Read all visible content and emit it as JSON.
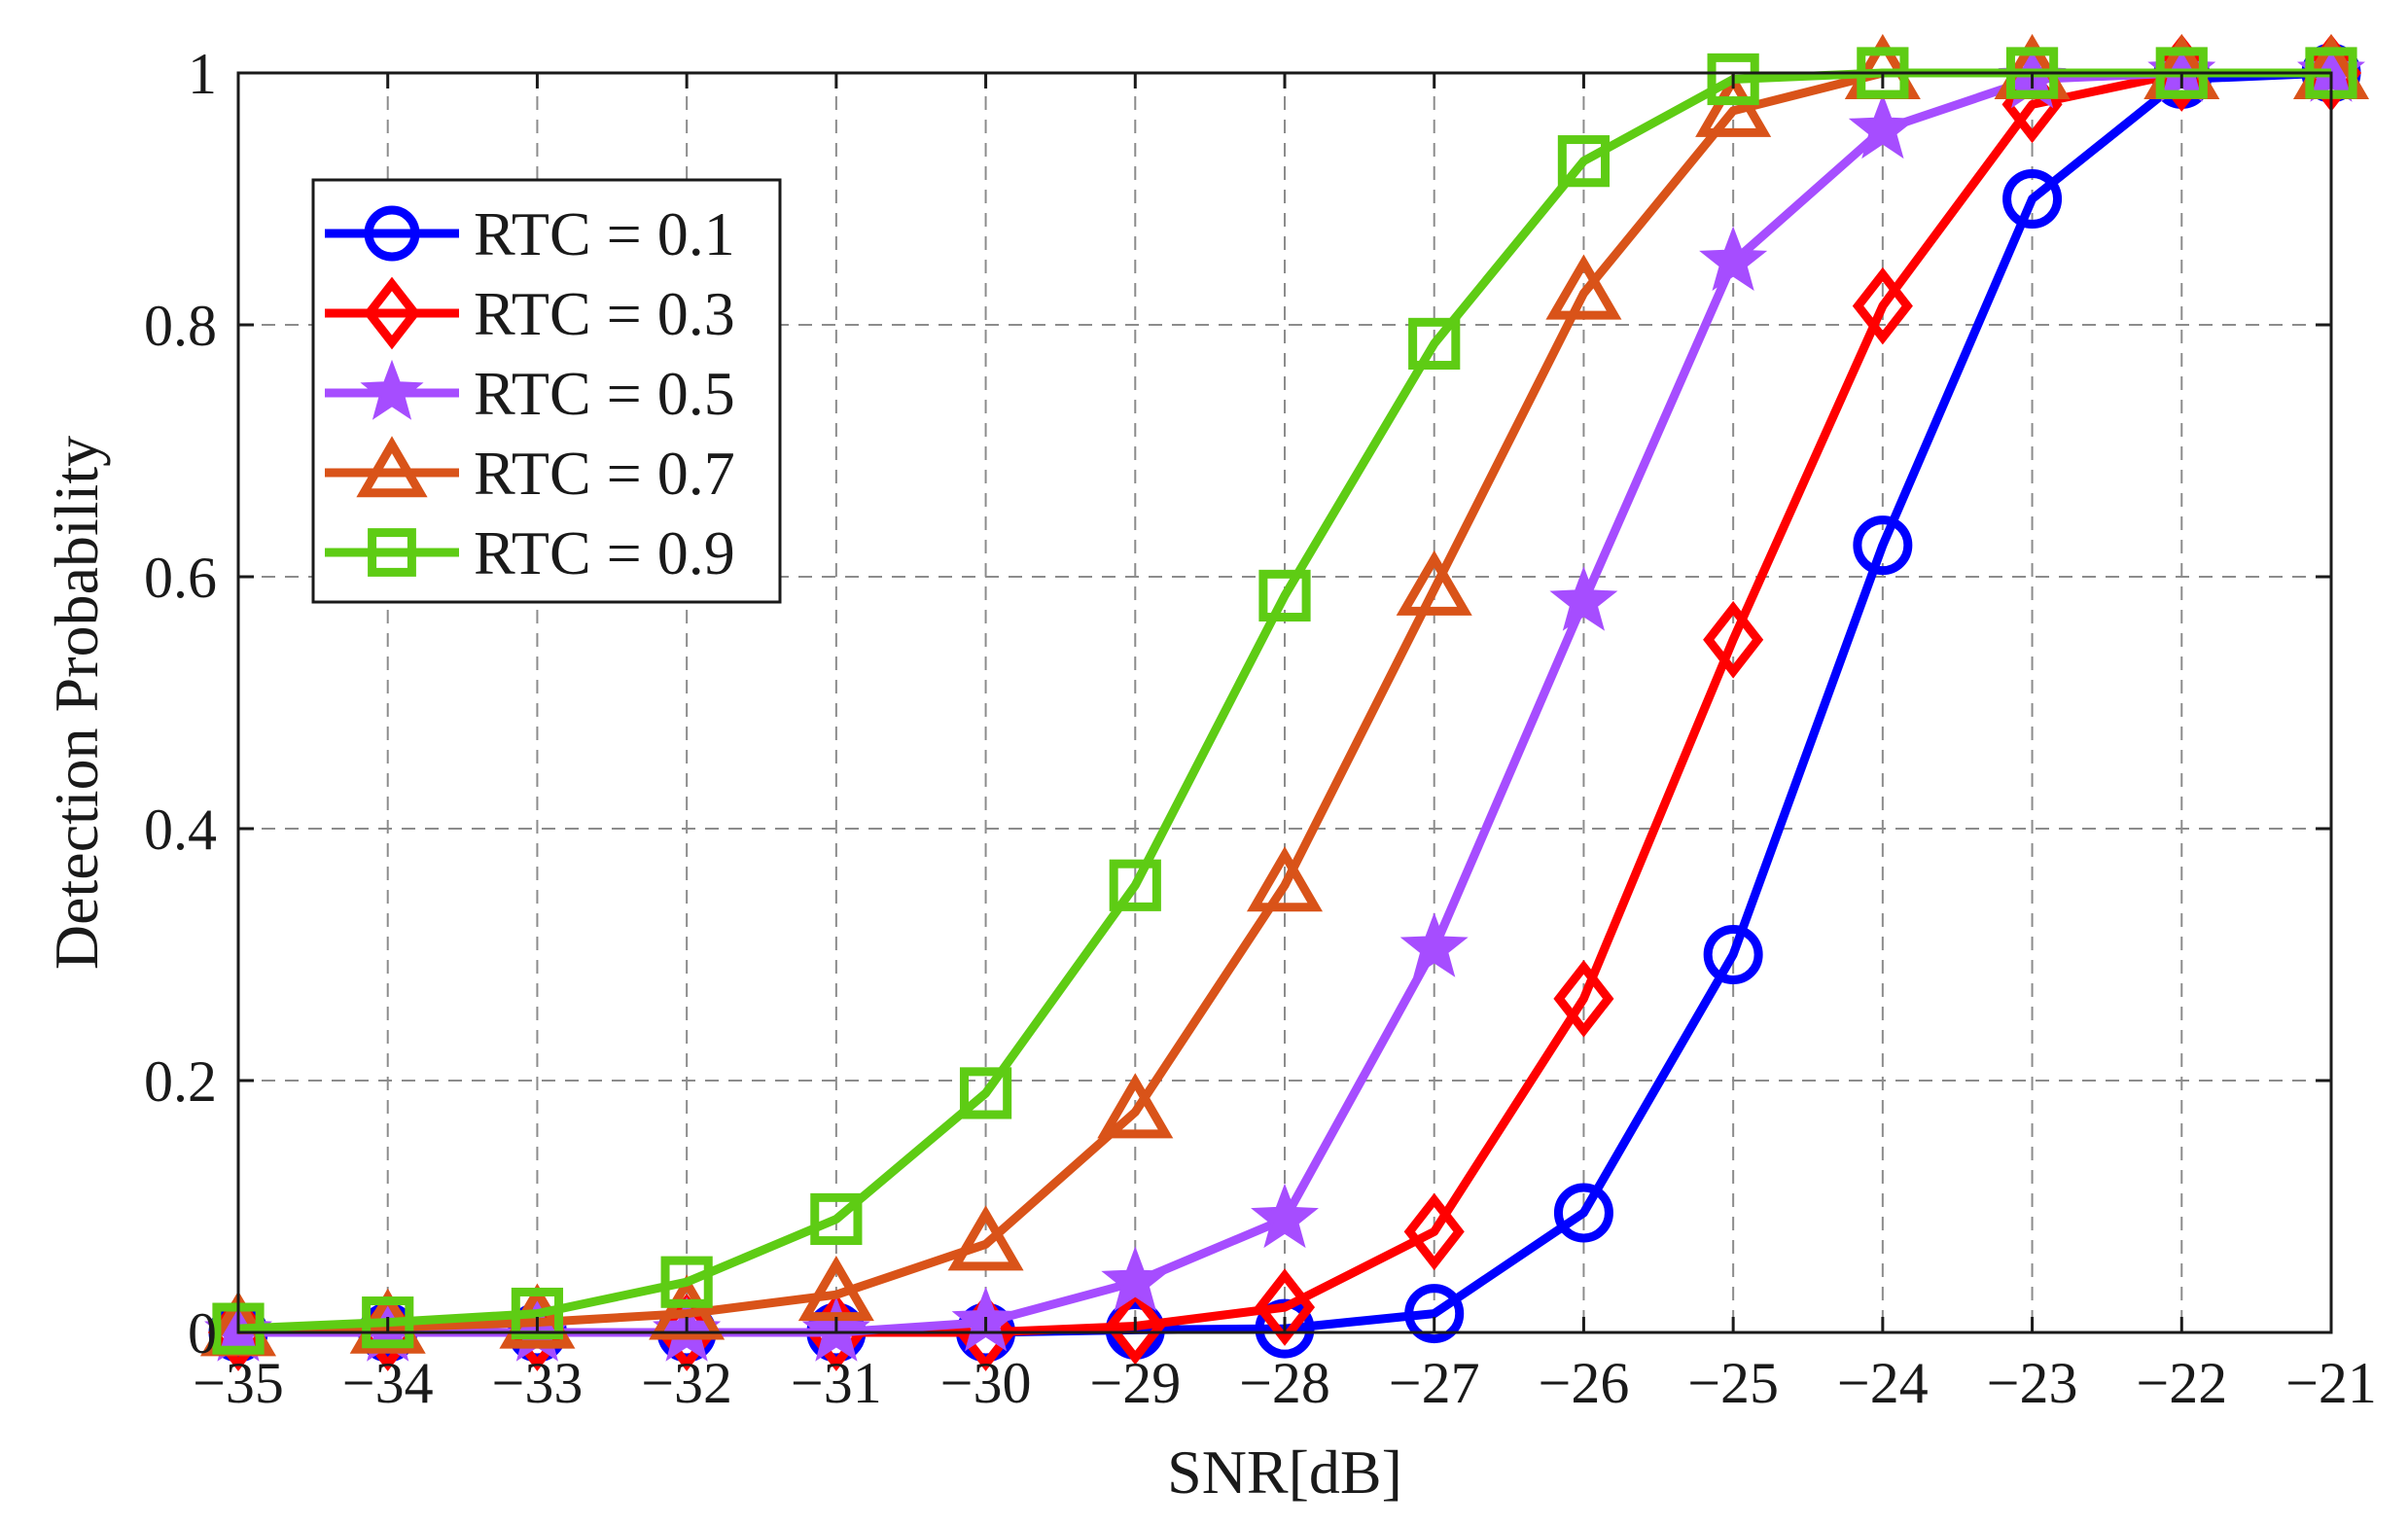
{
  "chart_data": {
    "type": "line",
    "title": "",
    "xlabel": "SNR[dB]",
    "ylabel": "Detection Probability",
    "xlim": [
      -35,
      -21
    ],
    "ylim": [
      0,
      1
    ],
    "x": [
      -35,
      -34,
      -33,
      -32,
      -31,
      -30,
      -29,
      -28,
      -27,
      -26,
      -25,
      -24,
      -23,
      -22,
      -21
    ],
    "xticks": [
      "−35",
      "−34",
      "−33",
      "−32",
      "−31",
      "−30",
      "−29",
      "−28",
      "−27",
      "−26",
      "−25",
      "−24",
      "−23",
      "−22",
      "−21"
    ],
    "yticks": [
      "0",
      "0.2",
      "0.4",
      "0.6",
      "0.8",
      "1"
    ],
    "ytick_values": [
      0,
      0.2,
      0.4,
      0.6,
      0.8,
      1
    ],
    "grid": true,
    "grid_style": "dashed",
    "legend_position": "top-left",
    "series": [
      {
        "name": "RTC = 0.1",
        "color": "#0000ff",
        "marker": "circle",
        "values": [
          0,
          0,
          0,
          0,
          0,
          0,
          0.002,
          0.003,
          0.015,
          0.095,
          0.3,
          0.625,
          0.9,
          0.995,
          1.0
        ]
      },
      {
        "name": "RTC = 0.3",
        "color": "#ff0000",
        "marker": "diamond",
        "values": [
          0,
          0,
          0,
          0,
          0,
          0,
          0.005,
          0.02,
          0.08,
          0.265,
          0.55,
          0.815,
          0.975,
          1.0,
          1.0
        ]
      },
      {
        "name": "RTC = 0.5",
        "color": "#a64dff",
        "marker": "star",
        "values": [
          0,
          0,
          0,
          0,
          0,
          0.008,
          0.04,
          0.09,
          0.305,
          0.58,
          0.85,
          0.955,
          0.995,
          1.0,
          1.0
        ]
      },
      {
        "name": "RTC = 0.7",
        "color": "#d95319",
        "marker": "triangle",
        "values": [
          0.002,
          0.004,
          0.008,
          0.015,
          0.03,
          0.07,
          0.175,
          0.355,
          0.59,
          0.825,
          0.97,
          1.0,
          1.0,
          1.0,
          1.0
        ]
      },
      {
        "name": "RTC = 0.9",
        "color": "#5ecc14",
        "marker": "square",
        "values": [
          0.003,
          0.008,
          0.015,
          0.04,
          0.09,
          0.19,
          0.355,
          0.585,
          0.785,
          0.93,
          0.995,
          1.0,
          1.0,
          1.0,
          1.0
        ]
      }
    ]
  }
}
